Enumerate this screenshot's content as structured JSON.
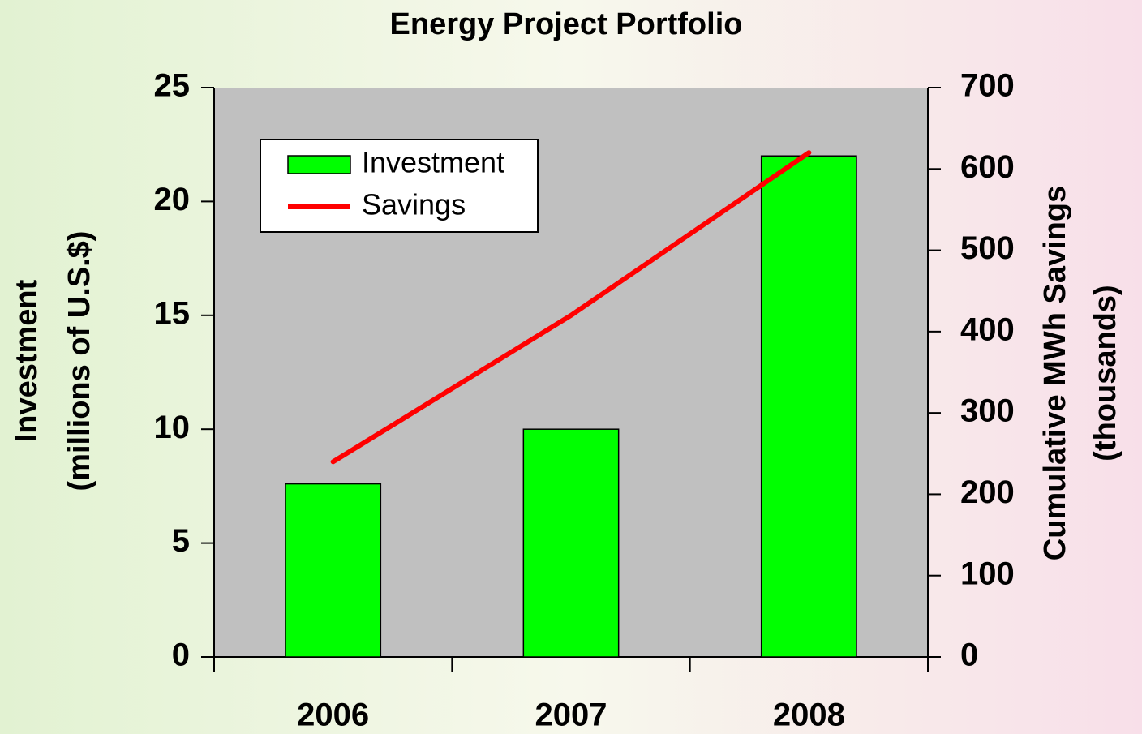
{
  "chart_data": {
    "type": "bar",
    "title": "Energy Project Portfolio",
    "categories": [
      "2006",
      "2007",
      "2008"
    ],
    "series": [
      {
        "name": "Investment",
        "type": "bar",
        "color": "#00ff00",
        "values": [
          7.6,
          10,
          22
        ]
      },
      {
        "name": "Savings",
        "type": "line",
        "axis": "y2",
        "color": "#ff0000",
        "values": [
          240,
          420,
          620
        ]
      }
    ],
    "ylabel": [
      "Investment",
      "(millions of U.S.$)"
    ],
    "y2label": [
      "Cumulative MWh Savings",
      "(thousands)"
    ],
    "ylim": [
      0,
      25
    ],
    "yticks": [
      0,
      5,
      10,
      15,
      20,
      25
    ],
    "y2lim": [
      0,
      700
    ],
    "y2ticks": [
      0,
      100,
      200,
      300,
      400,
      500,
      600,
      700
    ],
    "legend": "upper left",
    "plot_background": "#c0c0c0"
  }
}
